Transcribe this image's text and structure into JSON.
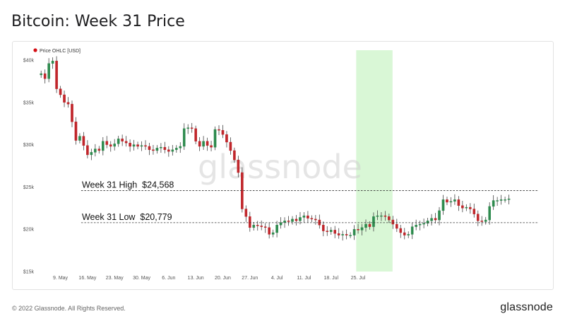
{
  "page": {
    "title": "Bitcoin: Week 31 Price",
    "copyright": "© 2022 Glassnode. All Rights Reserved.",
    "brand": "glassnode",
    "watermark": "glassnode"
  },
  "colors": {
    "up": "#2e8b4e",
    "down": "#c0262b",
    "legend_dot": "#d40e14",
    "highlight": "#d9f7d6",
    "ref_line": "#333333"
  },
  "chart_data": {
    "type": "candlestick",
    "legend": [
      {
        "name": "Price OHLC [USD]"
      }
    ],
    "legend_position": "top-left",
    "ylim": [
      15000,
      41000
    ],
    "yticks": [
      {
        "value": 15000,
        "label": "$15k"
      },
      {
        "value": 20000,
        "label": "$20k"
      },
      {
        "value": 25000,
        "label": "$25k"
      },
      {
        "value": 30000,
        "label": "$30k"
      },
      {
        "value": 35000,
        "label": "$35k"
      },
      {
        "value": 40000,
        "label": "$40k"
      }
    ],
    "x_start": "2022-05-04",
    "xticks": [
      {
        "date": "2022-05-09",
        "label": "9. May"
      },
      {
        "date": "2022-05-16",
        "label": "16. May"
      },
      {
        "date": "2022-05-23",
        "label": "23. May"
      },
      {
        "date": "2022-05-30",
        "label": "30. May"
      },
      {
        "date": "2022-06-06",
        "label": "6. Jun"
      },
      {
        "date": "2022-06-13",
        "label": "13. Jun"
      },
      {
        "date": "2022-06-20",
        "label": "20. Jun"
      },
      {
        "date": "2022-06-27",
        "label": "27. Jun"
      },
      {
        "date": "2022-07-04",
        "label": "4. Jul"
      },
      {
        "date": "2022-07-11",
        "label": "11. Jul"
      },
      {
        "date": "2022-07-18",
        "label": "18. Jul"
      },
      {
        "date": "2022-07-25",
        "label": "25. Jul"
      }
    ],
    "highlight_range": [
      "2022-07-25",
      "2022-08-01"
    ],
    "reference_lines": [
      {
        "label": "Week 31 High  $24,568",
        "value": 24568
      },
      {
        "label": "Week 31 Low  $20,779",
        "value": 20779
      }
    ],
    "grid": false,
    "closes": [
      38400,
      37800,
      39600,
      39900,
      36600,
      35900,
      35000,
      34800,
      32700,
      30500,
      31000,
      29900,
      28800,
      29100,
      29500,
      29300,
      30400,
      30000,
      29800,
      30100,
      30700,
      30400,
      30200,
      29800,
      30000,
      29800,
      29900,
      29800,
      29400,
      29300,
      29600,
      29700,
      29400,
      29200,
      29400,
      29600,
      29800,
      31900,
      32000,
      31900,
      30400,
      29800,
      30400,
      29900,
      29700,
      31800,
      31700,
      31200,
      30300,
      29300,
      28200,
      26700,
      22400,
      21500,
      20200,
      20500,
      20400,
      20300,
      20200,
      19400,
      19600,
      20500,
      20800,
      21000,
      20900,
      21200,
      21000,
      21400,
      21600,
      21300,
      21200,
      21100,
      20500,
      19800,
      19700,
      19900,
      19500,
      19300,
      19400,
      19300,
      19300,
      20000,
      19900,
      20200,
      20600,
      20300,
      21500,
      21600,
      21600,
      21500,
      21100,
      20600,
      20100,
      19600,
      19300,
      19400,
      20300,
      20500,
      20600,
      20700,
      21000,
      21300,
      21100,
      22200,
      23500,
      23200,
      23300,
      23500,
      22800,
      22500,
      22600,
      22400,
      21800,
      21000,
      20900,
      21100,
      22700,
      23400,
      23400,
      23500,
      23500,
      23600
    ]
  }
}
